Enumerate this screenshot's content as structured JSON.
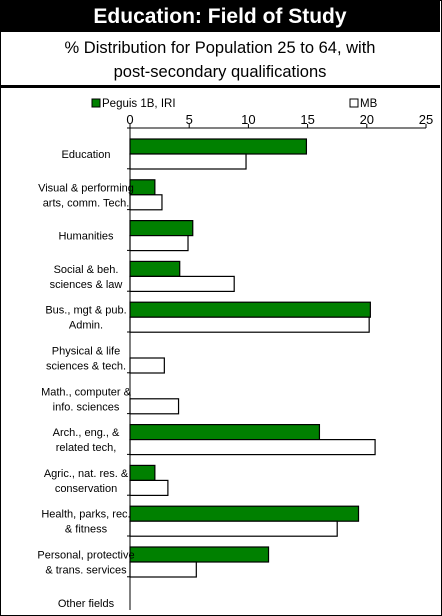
{
  "header": {
    "title": "Education: Field of Study",
    "subtitle_line1": "% Distribution for Population 25 to 64, with",
    "subtitle_line2": "post-secondary qualifications"
  },
  "colors": {
    "series1": "#008000",
    "series2": "#ffffff",
    "stroke": "#000000"
  },
  "chart_data": {
    "type": "bar",
    "orientation": "horizontal",
    "title": "Education: Field of Study",
    "subtitle": "% Distribution for Population 25 to 64, with post-secondary qualifications",
    "xlabel": "",
    "ylabel": "",
    "xlim": [
      0,
      25
    ],
    "xticks": [
      0,
      5,
      10,
      15,
      20,
      25
    ],
    "grid": false,
    "legend_position": "top",
    "categories": [
      [
        "Education"
      ],
      [
        "Visual & performing",
        "arts, comm. Tech."
      ],
      [
        "Humanities"
      ],
      [
        "Social & beh.",
        "sciences & law"
      ],
      [
        "Bus., mgt & pub.",
        "Admin."
      ],
      [
        "Physical & life",
        "sciences & tech."
      ],
      [
        "Math., computer &",
        "info. sciences"
      ],
      [
        "Arch., eng., &",
        "related tech,"
      ],
      [
        "Agric., nat. res. &",
        "conservation"
      ],
      [
        "Health, parks, rec.",
        "& fitness"
      ],
      [
        "Personal, protective",
        "& trans. services"
      ],
      [
        "Other fields"
      ]
    ],
    "series": [
      {
        "name": "Peguis 1B, IRI",
        "values": [
          14.9,
          2.1,
          5.3,
          4.2,
          20.3,
          0,
          0,
          16.0,
          2.1,
          19.3,
          11.7,
          0
        ]
      },
      {
        "name": "MB",
        "values": [
          9.8,
          2.7,
          4.9,
          8.8,
          20.2,
          2.9,
          4.1,
          20.7,
          3.2,
          17.5,
          5.6,
          0
        ]
      }
    ]
  }
}
